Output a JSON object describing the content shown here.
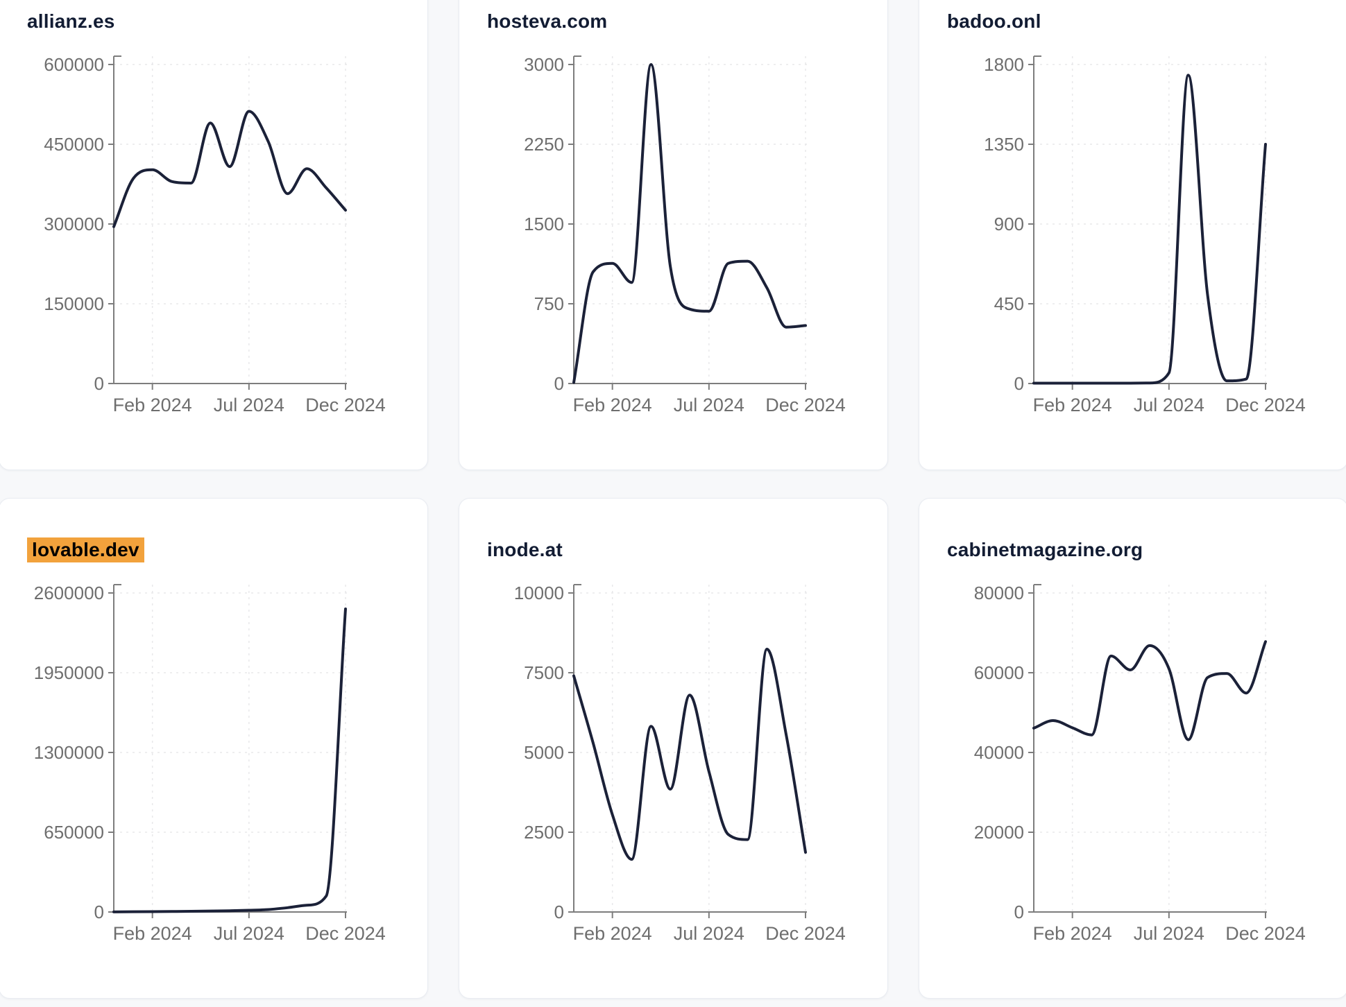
{
  "theme": {
    "page_background": "#f7f8fa",
    "card_background": "#ffffff",
    "card_border": "#e9ecf2",
    "title_color": "#121c33",
    "highlight_background": "#f2a23c",
    "highlight_text": "#000000",
    "series_line_color": "#1b2138",
    "axis_color": "#7d7d7d",
    "tick_label_color": "#6e6e6e",
    "grid_color": "#e8e8ea"
  },
  "chart_data": [
    {
      "type": "line",
      "title": "allianz.es",
      "highlighted": false,
      "x_tick_labels": [
        "Feb 2024",
        "Jul 2024",
        "Dec 2024"
      ],
      "x_tick_positions": [
        2,
        7,
        12
      ],
      "n_points": 13,
      "ylim": [
        0,
        600000
      ],
      "y_ticks": [
        0,
        150000,
        300000,
        450000,
        600000
      ],
      "values": [
        295000,
        385000,
        402000,
        380000,
        377000,
        490000,
        408000,
        512000,
        455000,
        357000,
        404000,
        368000,
        326000
      ],
      "grid": true,
      "legend": "none"
    },
    {
      "type": "line",
      "title": "hosteva.com",
      "highlighted": false,
      "x_tick_labels": [
        "Feb 2024",
        "Jul 2024",
        "Dec 2024"
      ],
      "x_tick_positions": [
        2,
        7,
        12
      ],
      "n_points": 13,
      "ylim": [
        0,
        3000
      ],
      "y_ticks": [
        0,
        750,
        1500,
        2250,
        3000
      ],
      "values": [
        10,
        1050,
        1130,
        950,
        3000,
        1100,
        700,
        680,
        1130,
        1150,
        900,
        530,
        545
      ],
      "grid": true,
      "legend": "none"
    },
    {
      "type": "line",
      "title": "badoo.onl",
      "highlighted": false,
      "x_tick_labels": [
        "Feb 2024",
        "Jul 2024",
        "Dec 2024"
      ],
      "x_tick_positions": [
        2,
        7,
        12
      ],
      "n_points": 13,
      "ylim": [
        0,
        1800
      ],
      "y_ticks": [
        0,
        450,
        900,
        1350,
        1800
      ],
      "values": [
        2,
        2,
        2,
        2,
        2,
        2,
        3,
        60,
        1740,
        500,
        15,
        25,
        1350
      ],
      "grid": true,
      "legend": "none"
    },
    {
      "type": "line",
      "title": "lovable.dev",
      "highlighted": true,
      "x_tick_labels": [
        "Feb 2024",
        "Jul 2024",
        "Dec 2024"
      ],
      "x_tick_positions": [
        2,
        7,
        12
      ],
      "n_points": 13,
      "ylim": [
        0,
        2600000
      ],
      "y_ticks": [
        0,
        650000,
        1300000,
        1950000,
        2600000
      ],
      "values": [
        1000,
        2000,
        3000,
        4000,
        6000,
        8000,
        10000,
        14000,
        20000,
        35000,
        55000,
        130000,
        2470000
      ],
      "grid": true,
      "legend": "none"
    },
    {
      "type": "line",
      "title": "inode.at",
      "highlighted": false,
      "x_tick_labels": [
        "Feb 2024",
        "Jul 2024",
        "Dec 2024"
      ],
      "x_tick_positions": [
        2,
        7,
        12
      ],
      "n_points": 13,
      "ylim": [
        0,
        10000
      ],
      "y_ticks": [
        0,
        2500,
        5000,
        7500,
        10000
      ],
      "values": [
        7400,
        5300,
        3050,
        1650,
        5820,
        3850,
        6800,
        4400,
        2430,
        2270,
        8240,
        5550,
        1870
      ],
      "grid": true,
      "legend": "none"
    },
    {
      "type": "line",
      "title": "cabinetmagazine.org",
      "highlighted": false,
      "x_tick_labels": [
        "Feb 2024",
        "Jul 2024",
        "Dec 2024"
      ],
      "x_tick_positions": [
        2,
        7,
        12
      ],
      "n_points": 13,
      "ylim": [
        0,
        80000
      ],
      "y_ticks": [
        0,
        20000,
        40000,
        60000,
        80000
      ],
      "values": [
        46100,
        48000,
        46200,
        44400,
        64200,
        60700,
        66800,
        61000,
        43200,
        58800,
        59800,
        54900,
        67800
      ],
      "grid": true,
      "legend": "none"
    }
  ]
}
